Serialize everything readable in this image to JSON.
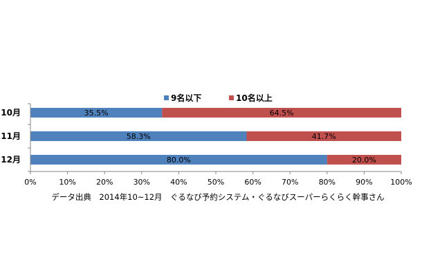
{
  "chart_data": {
    "type": "bar",
    "stacked": true,
    "orientation": "horizontal",
    "percent_stacked": true,
    "categories": [
      "10月",
      "11月",
      "12月"
    ],
    "series": [
      {
        "name": "9名以下",
        "values": [
          35.5,
          58.3,
          80.0
        ],
        "labels": [
          "35.5%",
          "58.3%",
          "80.0%"
        ]
      },
      {
        "name": "10名以上",
        "values": [
          64.5,
          41.7,
          20.0
        ],
        "labels": [
          "64.5%",
          "41.7%",
          "20.0%"
        ]
      }
    ],
    "xlim": [
      0,
      100
    ],
    "xticks": [
      0,
      10,
      20,
      30,
      40,
      50,
      60,
      70,
      80,
      90,
      100
    ],
    "xtick_labels": [
      "0%",
      "10%",
      "20%",
      "30%",
      "40%",
      "50%",
      "60%",
      "70%",
      "80%",
      "90%",
      "100%"
    ],
    "grid": false,
    "legend_position": "top",
    "colors": [
      "#4f81bd",
      "#c0504d"
    ],
    "source_note": "データ出典　2014年10~12月　ぐるなび予約システム・ぐるなびスーパーらくらく幹事さん"
  }
}
